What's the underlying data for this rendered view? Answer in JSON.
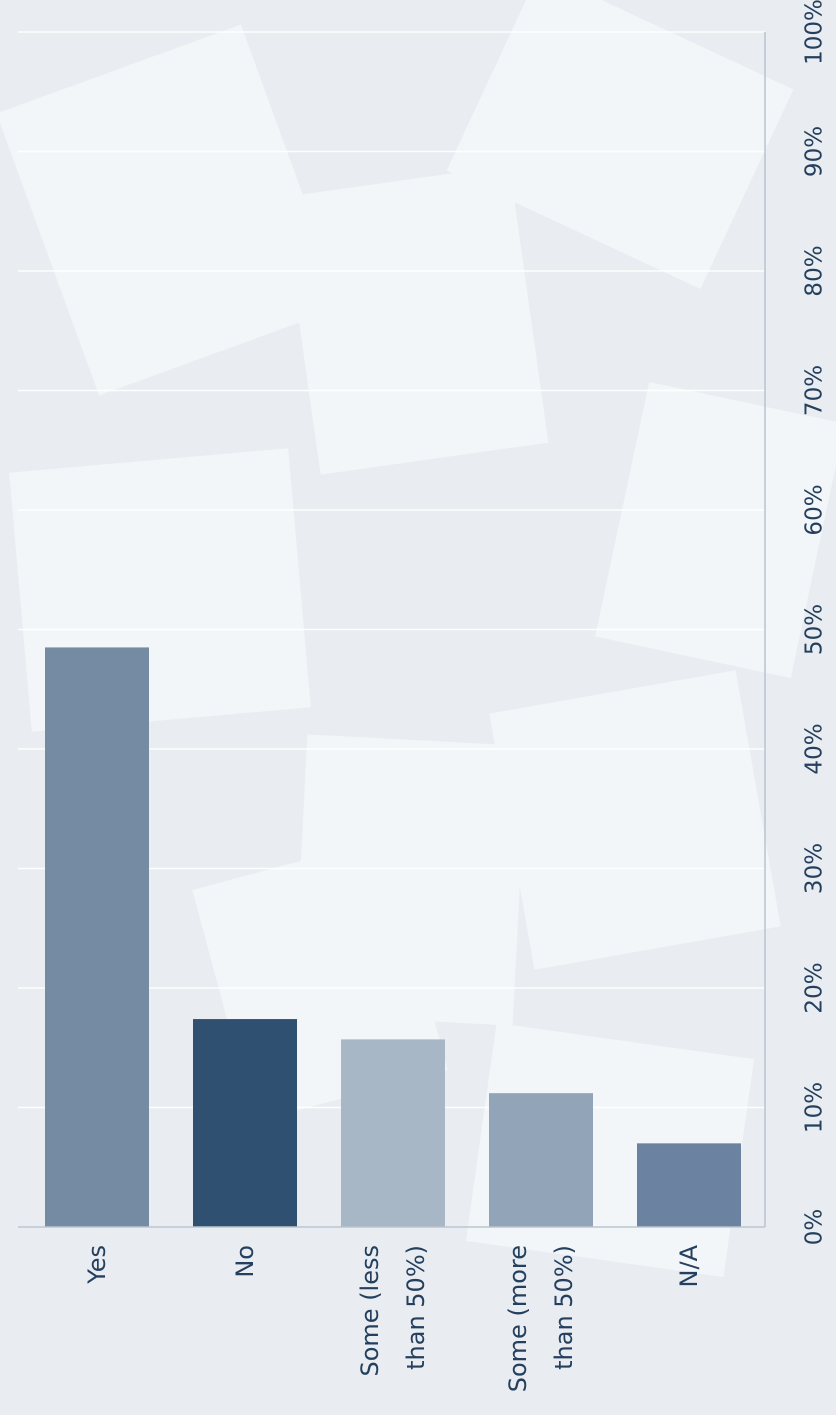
{
  "chart_data": {
    "type": "bar",
    "orientation": "rotated",
    "categories": [
      "Yes",
      "No",
      "Some (less than 50%)",
      "Some (more than 50%)",
      "N/A"
    ],
    "values": [
      48.5,
      17.4,
      15.7,
      11.2,
      7.0
    ],
    "colors": [
      "#748ba3",
      "#2f5070",
      "#a8b7c6",
      "#92a5b8",
      "#6b83a0"
    ],
    "ylim": [
      0,
      100
    ],
    "yticks": [
      {
        "value": 0,
        "label": "0%"
      },
      {
        "value": 10,
        "label": "10%"
      },
      {
        "value": 20,
        "label": "20%"
      },
      {
        "value": 30,
        "label": "30%"
      },
      {
        "value": 40,
        "label": "40%"
      },
      {
        "value": 50,
        "label": "50%"
      },
      {
        "value": 60,
        "label": "60%"
      },
      {
        "value": 70,
        "label": "70%"
      },
      {
        "value": 80,
        "label": "80%"
      },
      {
        "value": 90,
        "label": "90%"
      },
      {
        "value": 100,
        "label": "100%"
      }
    ],
    "grid": true
  }
}
